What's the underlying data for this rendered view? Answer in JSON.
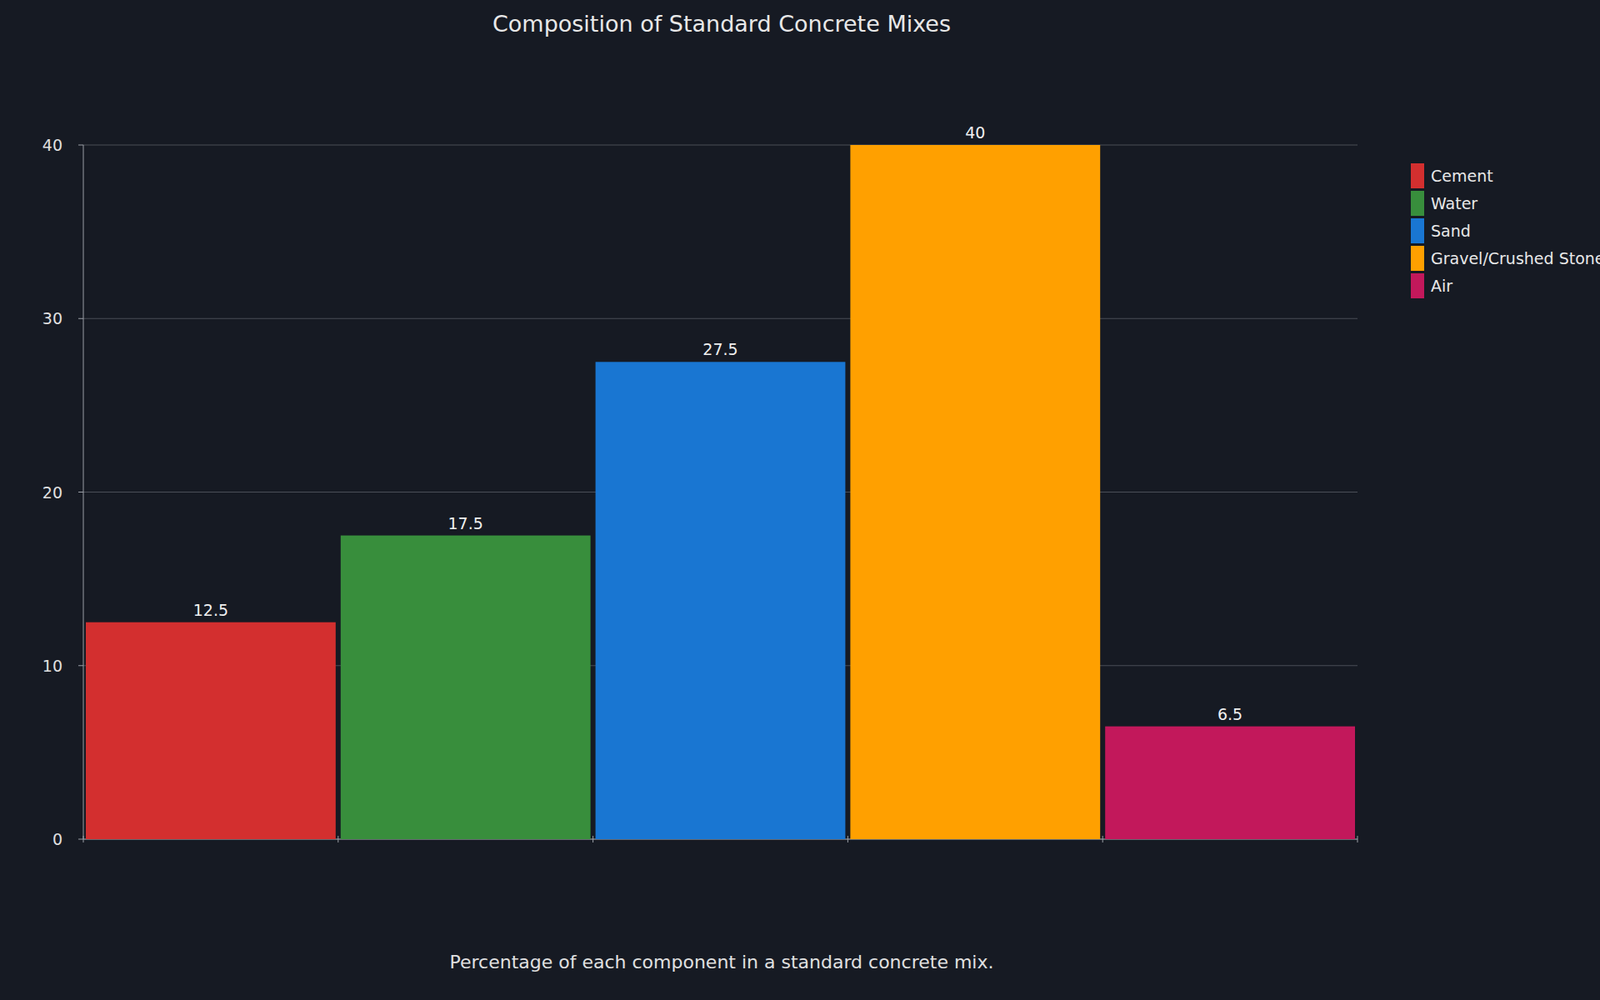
{
  "chart_data": {
    "type": "bar",
    "title": "Composition of Standard Concrete Mixes",
    "xlabel": "Percentage of each component in a standard concrete mix.",
    "categories": [
      "Cement",
      "Water",
      "Sand",
      "Gravel/Crushed Stone",
      "Air"
    ],
    "values": [
      12.5,
      17.5,
      27.5,
      40,
      6.5
    ],
    "colors": [
      "#d32f2f",
      "#388e3c",
      "#1976d2",
      "#ffa000",
      "#c2185b"
    ],
    "ylim": [
      0,
      40
    ],
    "yticks": [
      0,
      10,
      20,
      30,
      40
    ],
    "grid": true,
    "data_labels": true,
    "tick_labels": "y",
    "legend": "right"
  }
}
